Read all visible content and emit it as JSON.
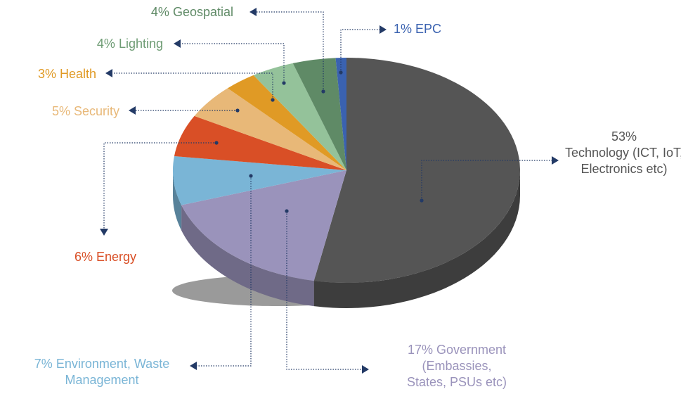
{
  "chart_data": {
    "type": "pie3d",
    "categories": [
      "Technology (ICT, IoT, Electronics etc)",
      "Government (Embassies, States, PSUs etc)",
      "Environment, Waste Management",
      "Energy",
      "Security",
      "Health",
      "Lighting",
      "Geospatial",
      "EPC"
    ],
    "values": [
      53,
      17,
      7,
      6,
      5,
      3,
      4,
      4,
      1
    ],
    "value_labels": [
      "53%",
      "17%",
      "7%",
      "6%",
      "5%",
      "3%",
      "4%",
      "4%",
      "1%"
    ],
    "colors": [
      "#555555",
      "#9a93bb",
      "#7ab5d6",
      "#d94f26",
      "#e8b878",
      "#e09a25",
      "#94c29a",
      "#5f8a66",
      "#3a62b0"
    ],
    "label_colors": [
      "#555555",
      "#9a93bb",
      "#7ab5d6",
      "#d94f26",
      "#e8b878",
      "#e09a25",
      "#6e9c74",
      "#5f8a66",
      "#3a62b0"
    ]
  }
}
